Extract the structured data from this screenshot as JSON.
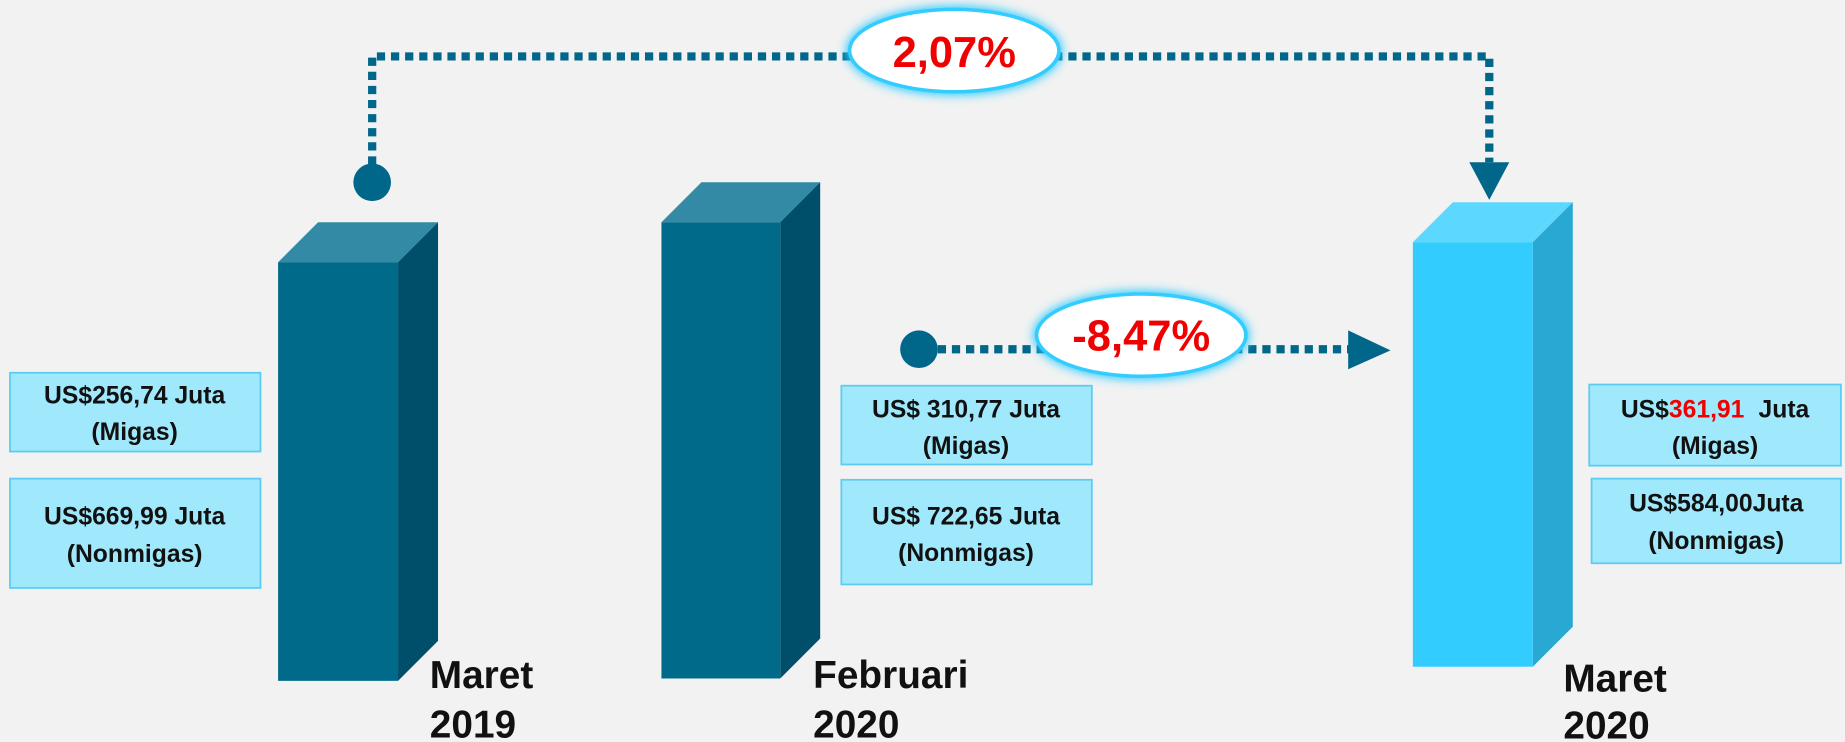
{
  "periods": [
    {
      "name": "Maret",
      "year": "2019",
      "migas": "US$256,74 Juta",
      "migas_note": "(Migas)",
      "nonmigas": "US$669,99 Juta",
      "nonmigas_note": "(Nonmigas)"
    },
    {
      "name": "Februari",
      "year": "2020",
      "migas": "US$ 310,77 Juta",
      "migas_note": "(Migas)",
      "nonmigas": "US$ 722,65 Juta",
      "nonmigas_note": "(Nonmigas)"
    },
    {
      "name": "Maret",
      "year": "2020",
      "migas_prefix": "US$",
      "migas_value": "361,91",
      "migas_suffix": "Juta",
      "migas_note": "(Migas)",
      "nonmigas": "US$584,00Juta",
      "nonmigas_note": "(Nonmigas)"
    }
  ],
  "changes": [
    {
      "label": "2,07%"
    },
    {
      "label": "-8,47%"
    }
  ]
}
